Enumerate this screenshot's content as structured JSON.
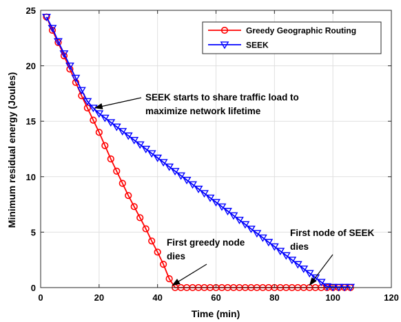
{
  "chart_data": {
    "type": "line",
    "xlabel": "Time (min)",
    "ylabel": "Minimum residual energy (Joules)",
    "xlim": [
      0,
      120
    ],
    "ylim": [
      0,
      25
    ],
    "xticks": [
      0,
      20,
      40,
      60,
      80,
      100,
      120
    ],
    "yticks": [
      0,
      5,
      10,
      15,
      20,
      25
    ],
    "grid": true,
    "legend_position": "top-right",
    "series": [
      {
        "name": "Greedy Geographic Routing",
        "color": "#ff0000",
        "marker": "circle",
        "x": [
          2,
          4,
          6,
          8,
          10,
          12,
          14,
          16,
          18,
          20,
          22,
          24,
          26,
          28,
          30,
          32,
          34,
          36,
          38,
          40,
          42,
          44,
          46,
          48,
          50,
          52,
          54,
          56,
          58,
          60,
          62,
          64,
          66,
          68,
          70,
          72,
          74,
          76,
          78,
          80,
          82,
          84,
          86,
          88,
          90,
          92,
          94,
          96,
          98,
          100,
          102,
          104,
          106
        ],
        "y": [
          24.4,
          23.2,
          22.1,
          20.9,
          19.7,
          18.5,
          17.3,
          16.2,
          15.1,
          14.0,
          12.8,
          11.6,
          10.5,
          9.4,
          8.3,
          7.3,
          6.3,
          5.3,
          4.2,
          3.2,
          2.1,
          0.8,
          0,
          0,
          0,
          0,
          0,
          0,
          0,
          0,
          0,
          0,
          0,
          0,
          0,
          0,
          0,
          0,
          0,
          0,
          0,
          0,
          0,
          0,
          0,
          0,
          0,
          0,
          0,
          0,
          0,
          0,
          0
        ]
      },
      {
        "name": "SEEK",
        "color": "#0000ff",
        "marker": "triangle-down",
        "x": [
          2,
          4,
          6,
          8,
          10,
          12,
          14,
          16,
          18,
          20,
          22,
          24,
          26,
          28,
          30,
          32,
          34,
          36,
          38,
          40,
          42,
          44,
          46,
          48,
          50,
          52,
          54,
          56,
          58,
          60,
          62,
          64,
          66,
          68,
          70,
          72,
          74,
          76,
          78,
          80,
          82,
          84,
          86,
          88,
          90,
          92,
          94,
          96,
          98,
          100,
          102,
          104,
          106
        ],
        "y": [
          24.4,
          23.4,
          22.2,
          21.1,
          20.0,
          18.9,
          17.8,
          16.8,
          16.2,
          15.7,
          15.3,
          14.9,
          14.5,
          14.1,
          13.7,
          13.3,
          12.9,
          12.5,
          12.1,
          11.7,
          11.3,
          10.9,
          10.5,
          10.1,
          9.7,
          9.3,
          8.9,
          8.5,
          8.1,
          7.7,
          7.3,
          6.9,
          6.5,
          6.1,
          5.7,
          5.3,
          4.9,
          4.5,
          4.1,
          3.7,
          3.3,
          2.9,
          2.5,
          2.1,
          1.7,
          1.3,
          0.9,
          0.5,
          0.1,
          0.05,
          0.05,
          0.05,
          0.05
        ]
      }
    ],
    "annotations": [
      {
        "id": "seek-share",
        "lines": [
          "SEEK starts to share traffic load to",
          "maximize network lifetime"
        ],
        "arrow_tip": [
          18.5,
          16.2
        ]
      },
      {
        "id": "greedy-dies",
        "lines": [
          "First greedy node",
          "dies"
        ],
        "arrow_tip": [
          45,
          0.2
        ]
      },
      {
        "id": "seek-dies",
        "lines": [
          "First node of SEEK",
          "dies"
        ],
        "arrow_tip": [
          92,
          0.2
        ]
      }
    ]
  }
}
